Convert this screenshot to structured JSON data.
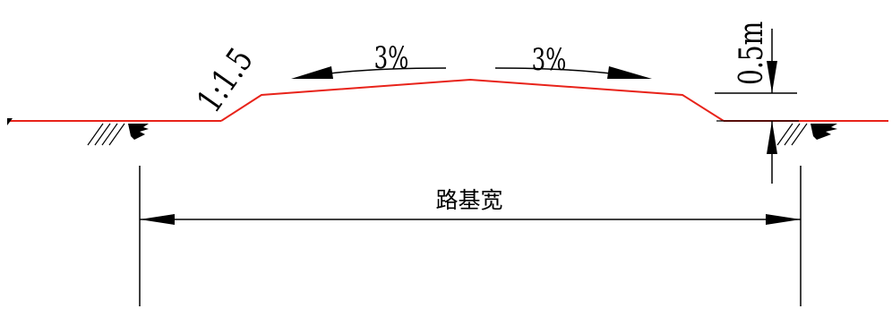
{
  "diagram": {
    "slope_ratio_label": "1:1.5",
    "crossfall_left_label": "3%",
    "crossfall_right_label": "3%",
    "height_label": "0.5m",
    "width_label": "路基宽",
    "colors": {
      "profile_line": "#e8231a",
      "dimension_line": "#000000",
      "ground_line": "#e8231a",
      "hatch": "#000000"
    }
  }
}
